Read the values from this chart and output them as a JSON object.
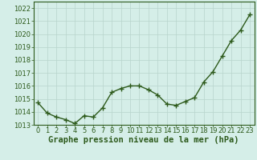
{
  "x": [
    0,
    1,
    2,
    3,
    4,
    5,
    6,
    7,
    8,
    9,
    10,
    11,
    12,
    13,
    14,
    15,
    16,
    17,
    18,
    19,
    20,
    21,
    22,
    23
  ],
  "y": [
    1014.7,
    1013.9,
    1013.6,
    1013.4,
    1013.1,
    1013.7,
    1013.6,
    1014.3,
    1015.5,
    1015.8,
    1016.0,
    1016.0,
    1015.7,
    1015.3,
    1014.6,
    1014.5,
    1014.8,
    1015.1,
    1016.3,
    1017.1,
    1018.3,
    1019.5,
    1020.3,
    1021.5
  ],
  "line_color": "#2d5a1b",
  "marker": "+",
  "marker_size": 4,
  "background_color": "#d5eee8",
  "grid_color": "#b8d4cc",
  "xlabel": "Graphe pression niveau de la mer (hPa)",
  "ylim_min": 1013.0,
  "ylim_max": 1022.5,
  "xlim_min": -0.5,
  "xlim_max": 23.5,
  "yticks": [
    1013,
    1014,
    1015,
    1016,
    1017,
    1018,
    1019,
    1020,
    1021,
    1022
  ],
  "xticks": [
    0,
    1,
    2,
    3,
    4,
    5,
    6,
    7,
    8,
    9,
    10,
    11,
    12,
    13,
    14,
    15,
    16,
    17,
    18,
    19,
    20,
    21,
    22,
    23
  ],
  "tick_label_color": "#2d5a1b",
  "xlabel_color": "#2d5a1b",
  "xlabel_fontsize": 7.5,
  "tick_fontsize": 6.0,
  "linewidth": 1.0
}
